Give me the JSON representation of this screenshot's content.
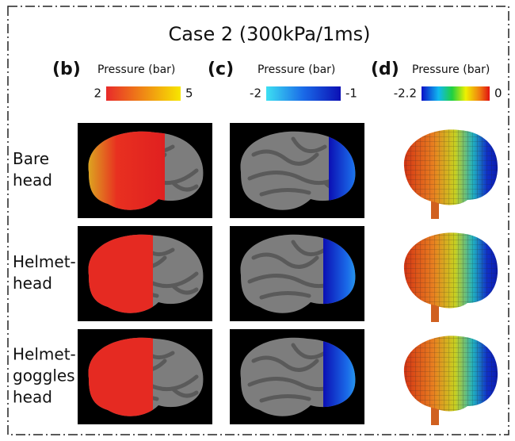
{
  "title": "Case 2 (300kPa/1ms)",
  "panels": [
    {
      "label": "(b)",
      "colorbar": {
        "title": "Pressure (bar)",
        "min": "2",
        "max": "5"
      }
    },
    {
      "label": "(c)",
      "colorbar": {
        "title": "Pressure (bar)",
        "min": "-2",
        "max": "-1"
      }
    },
    {
      "label": "(d)",
      "colorbar": {
        "title": "Pressure (bar)",
        "min": "-2.2",
        "max": "0"
      }
    }
  ],
  "rows": [
    {
      "label": [
        "Bare",
        "head"
      ]
    },
    {
      "label": [
        "Helmet-",
        "head"
      ]
    },
    {
      "label": [
        "Helmet-",
        "goggles",
        "head"
      ]
    }
  ]
}
